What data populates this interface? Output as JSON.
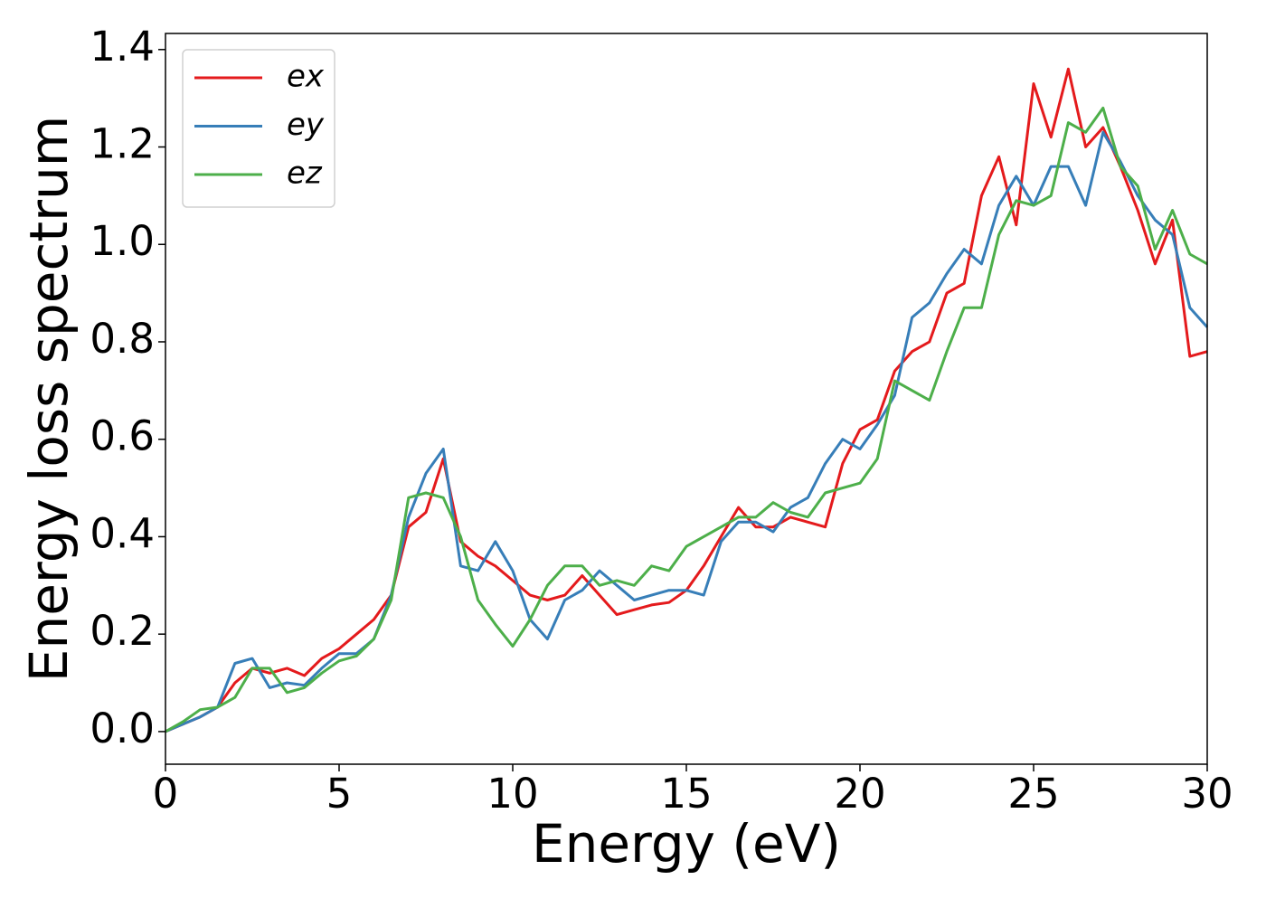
{
  "chart_data": {
    "type": "line",
    "xlabel": "Energy (eV)",
    "ylabel": "Energy loss spectrum",
    "x": [
      0,
      0.5,
      1,
      1.5,
      2,
      2.5,
      3,
      3.5,
      4,
      4.5,
      5,
      5.5,
      6,
      6.5,
      7,
      7.5,
      8,
      8.5,
      9,
      9.5,
      10,
      10.5,
      11,
      11.5,
      12,
      12.5,
      13,
      13.5,
      14,
      14.5,
      15,
      15.5,
      16,
      16.5,
      17,
      17.5,
      18,
      18.5,
      19,
      19.5,
      20,
      20.5,
      21,
      21.5,
      22,
      22.5,
      23,
      23.5,
      24,
      24.5,
      25,
      25.5,
      26,
      26.5,
      27,
      27.5,
      28,
      28.5,
      29,
      29.5,
      30
    ],
    "series": [
      {
        "name": "ex",
        "color": "#e41a1c",
        "values": [
          0,
          0.015,
          0.03,
          0.05,
          0.1,
          0.13,
          0.12,
          0.13,
          0.115,
          0.15,
          0.17,
          0.2,
          0.23,
          0.28,
          0.42,
          0.45,
          0.56,
          0.39,
          0.36,
          0.34,
          0.31,
          0.28,
          0.27,
          0.28,
          0.32,
          0.28,
          0.24,
          0.25,
          0.26,
          0.265,
          0.29,
          0.34,
          0.4,
          0.46,
          0.42,
          0.42,
          0.44,
          0.43,
          0.42,
          0.55,
          0.62,
          0.64,
          0.74,
          0.78,
          0.8,
          0.9,
          0.92,
          1.1,
          1.18,
          1.04,
          1.33,
          1.22,
          1.36,
          1.2,
          1.24,
          1.16,
          1.07,
          0.96,
          1.05,
          0.77,
          0.78
        ]
      },
      {
        "name": "ey",
        "color": "#377eb8",
        "values": [
          0,
          0.015,
          0.03,
          0.05,
          0.14,
          0.15,
          0.09,
          0.1,
          0.095,
          0.13,
          0.16,
          0.16,
          0.19,
          0.28,
          0.44,
          0.53,
          0.58,
          0.34,
          0.33,
          0.39,
          0.33,
          0.23,
          0.19,
          0.27,
          0.29,
          0.33,
          0.3,
          0.27,
          0.28,
          0.29,
          0.29,
          0.28,
          0.39,
          0.43,
          0.43,
          0.41,
          0.46,
          0.48,
          0.55,
          0.6,
          0.58,
          0.63,
          0.69,
          0.85,
          0.88,
          0.94,
          0.99,
          0.96,
          1.08,
          1.14,
          1.08,
          1.16,
          1.16,
          1.08,
          1.23,
          1.17,
          1.1,
          1.05,
          1.02,
          0.87,
          0.83
        ]
      },
      {
        "name": "ez",
        "color": "#4daf4a",
        "values": [
          0,
          0.02,
          0.045,
          0.05,
          0.07,
          0.13,
          0.13,
          0.08,
          0.09,
          0.12,
          0.145,
          0.155,
          0.19,
          0.27,
          0.48,
          0.49,
          0.48,
          0.4,
          0.27,
          0.22,
          0.175,
          0.23,
          0.3,
          0.34,
          0.34,
          0.3,
          0.31,
          0.3,
          0.34,
          0.33,
          0.38,
          0.4,
          0.42,
          0.44,
          0.44,
          0.47,
          0.45,
          0.44,
          0.49,
          0.5,
          0.51,
          0.56,
          0.72,
          0.7,
          0.68,
          0.78,
          0.87,
          0.87,
          1.02,
          1.09,
          1.08,
          1.1,
          1.25,
          1.23,
          1.28,
          1.16,
          1.12,
          0.99,
          1.07,
          0.98,
          0.96
        ]
      }
    ],
    "xlim": [
      0,
      30
    ],
    "xticks": [
      0,
      5,
      10,
      15,
      20,
      25,
      30
    ],
    "ylim": [
      -0.067,
      1.433
    ],
    "yticks": [
      {
        "value": 0,
        "label": "0.0"
      },
      0.2,
      0.4,
      0.6,
      0.8,
      {
        "value": 1,
        "label": "1.0"
      },
      1.2,
      1.4
    ],
    "legend": "upper left"
  }
}
